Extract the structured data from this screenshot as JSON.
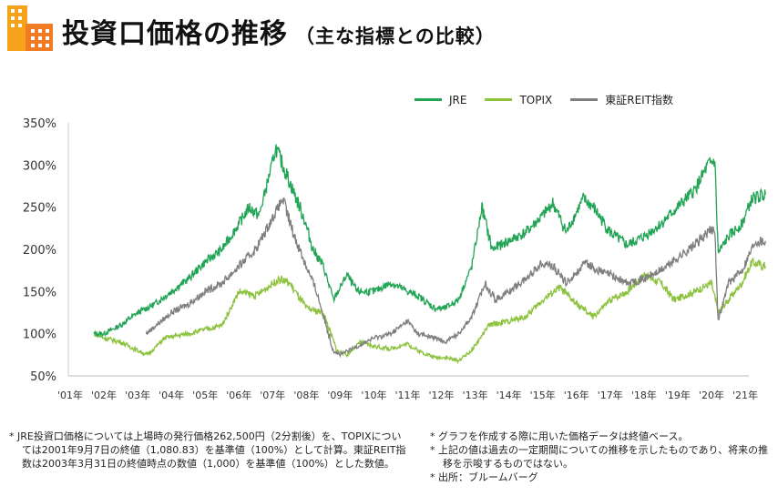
{
  "header": {
    "title": "投資口価格の推移",
    "subtitle": "（主な指標との比較）"
  },
  "chart_data": {
    "type": "line",
    "title": "投資口価格の推移（主な指標との比較）",
    "ylim": [
      50,
      350
    ],
    "yticks": [
      "50%",
      "100%",
      "150%",
      "200%",
      "250%",
      "300%",
      "350%"
    ],
    "yvalues": [
      50,
      100,
      150,
      200,
      250,
      300,
      350
    ],
    "xlim": [
      2001.6,
      2021.7
    ],
    "xticks": [
      "'01年",
      "'02年",
      "'03年",
      "'04年",
      "'05年",
      "'06年",
      "'07年",
      "'08年",
      "'09年",
      "'10年",
      "'11年",
      "'12年",
      "'13年",
      "'14年",
      "'15年",
      "'16年",
      "'17年",
      "'18年",
      "'19年",
      "'20年",
      "'21年"
    ],
    "legend_position": "top-right",
    "series": [
      {
        "name": "JRE",
        "color": "#22a455",
        "points": [
          [
            2001.7,
            100
          ],
          [
            2002,
            100
          ],
          [
            2002.5,
            110
          ],
          [
            2003,
            125
          ],
          [
            2003.5,
            135
          ],
          [
            2004,
            150
          ],
          [
            2004.5,
            165
          ],
          [
            2005,
            185
          ],
          [
            2005.5,
            200
          ],
          [
            2006,
            230
          ],
          [
            2006.3,
            250
          ],
          [
            2006.6,
            240
          ],
          [
            2007.1,
            320
          ],
          [
            2007.5,
            280
          ],
          [
            2007.9,
            240
          ],
          [
            2008.2,
            200
          ],
          [
            2008.5,
            180
          ],
          [
            2008.8,
            140
          ],
          [
            2009.2,
            170
          ],
          [
            2009.5,
            150
          ],
          [
            2010,
            150
          ],
          [
            2010.5,
            160
          ],
          [
            2011,
            150
          ],
          [
            2011.3,
            145
          ],
          [
            2011.8,
            130
          ],
          [
            2012.1,
            130
          ],
          [
            2012.5,
            140
          ],
          [
            2012.9,
            180
          ],
          [
            2013.2,
            250
          ],
          [
            2013.5,
            200
          ],
          [
            2014,
            210
          ],
          [
            2014.5,
            220
          ],
          [
            2015,
            240
          ],
          [
            2015.3,
            255
          ],
          [
            2015.7,
            220
          ],
          [
            2016.2,
            260
          ],
          [
            2016.5,
            250
          ],
          [
            2017,
            220
          ],
          [
            2017.5,
            205
          ],
          [
            2018,
            215
          ],
          [
            2018.5,
            230
          ],
          [
            2019,
            250
          ],
          [
            2019.5,
            270
          ],
          [
            2019.9,
            300
          ],
          [
            2020.1,
            305
          ],
          [
            2020.2,
            195
          ],
          [
            2020.5,
            215
          ],
          [
            2020.9,
            230
          ],
          [
            2021.2,
            260
          ],
          [
            2021.6,
            265
          ]
        ]
      },
      {
        "name": "TOPIX",
        "color": "#8dc23f",
        "points": [
          [
            2001.7,
            100
          ],
          [
            2002,
            95
          ],
          [
            2002.5,
            90
          ],
          [
            2003,
            80
          ],
          [
            2003.3,
            75
          ],
          [
            2003.8,
            95
          ],
          [
            2004.5,
            100
          ],
          [
            2005,
            105
          ],
          [
            2005.5,
            110
          ],
          [
            2006,
            150
          ],
          [
            2006.5,
            145
          ],
          [
            2007.2,
            165
          ],
          [
            2007.5,
            160
          ],
          [
            2008,
            130
          ],
          [
            2008.5,
            125
          ],
          [
            2008.9,
            80
          ],
          [
            2009.2,
            75
          ],
          [
            2009.6,
            90
          ],
          [
            2010,
            85
          ],
          [
            2010.5,
            82
          ],
          [
            2011,
            88
          ],
          [
            2011.3,
            80
          ],
          [
            2011.8,
            72
          ],
          [
            2012.1,
            72
          ],
          [
            2012.5,
            68
          ],
          [
            2012.9,
            80
          ],
          [
            2013.4,
            110
          ],
          [
            2014,
            115
          ],
          [
            2014.5,
            120
          ],
          [
            2015,
            140
          ],
          [
            2015.5,
            155
          ],
          [
            2016,
            135
          ],
          [
            2016.5,
            120
          ],
          [
            2017,
            140
          ],
          [
            2017.5,
            150
          ],
          [
            2018,
            170
          ],
          [
            2018.5,
            160
          ],
          [
            2018.9,
            140
          ],
          [
            2019.5,
            150
          ],
          [
            2020,
            160
          ],
          [
            2020.2,
            125
          ],
          [
            2020.5,
            140
          ],
          [
            2020.9,
            160
          ],
          [
            2021.2,
            185
          ],
          [
            2021.6,
            180
          ]
        ]
      },
      {
        "name": "東証REIT指数",
        "color": "#7f7f7f",
        "points": [
          [
            2003.25,
            100
          ],
          [
            2003.7,
            115
          ],
          [
            2004,
            125
          ],
          [
            2004.5,
            135
          ],
          [
            2005,
            150
          ],
          [
            2005.5,
            160
          ],
          [
            2006,
            180
          ],
          [
            2006.5,
            200
          ],
          [
            2007.3,
            260
          ],
          [
            2007.6,
            220
          ],
          [
            2008,
            180
          ],
          [
            2008.3,
            150
          ],
          [
            2008.8,
            80
          ],
          [
            2009,
            75
          ],
          [
            2009.5,
            85
          ],
          [
            2010,
            95
          ],
          [
            2010.5,
            100
          ],
          [
            2011,
            115
          ],
          [
            2011.3,
            100
          ],
          [
            2011.8,
            95
          ],
          [
            2012.1,
            90
          ],
          [
            2012.5,
            100
          ],
          [
            2012.9,
            120
          ],
          [
            2013.3,
            160
          ],
          [
            2013.6,
            140
          ],
          [
            2014,
            150
          ],
          [
            2014.5,
            165
          ],
          [
            2015,
            185
          ],
          [
            2015.3,
            180
          ],
          [
            2015.7,
            160
          ],
          [
            2016.3,
            185
          ],
          [
            2016.6,
            175
          ],
          [
            2017,
            170
          ],
          [
            2017.5,
            160
          ],
          [
            2018,
            165
          ],
          [
            2018.5,
            175
          ],
          [
            2019,
            190
          ],
          [
            2019.5,
            205
          ],
          [
            2019.9,
            220
          ],
          [
            2020.1,
            225
          ],
          [
            2020.2,
            115
          ],
          [
            2020.5,
            160
          ],
          [
            2020.9,
            175
          ],
          [
            2021.3,
            210
          ],
          [
            2021.6,
            210
          ]
        ]
      }
    ]
  },
  "notes_left": [
    "* JRE投資口価格については上場時の発行価格262,500円（2分割後）を、TOPIXについては2001年9月7日の終値（1,080.83）を基準値（100%）として計算。東証REIT指数は2003年3月31日の終値時点の数値（1,000）を基準値（100%）とした数値。"
  ],
  "notes_right": [
    "* グラフを作成する際に用いた価格データは終値ベース。",
    "* 上記の値は過去の一定期間についての推移を示したものであり、将来の推移を示唆するものではない。",
    "* 出所：ブルームバーグ"
  ]
}
